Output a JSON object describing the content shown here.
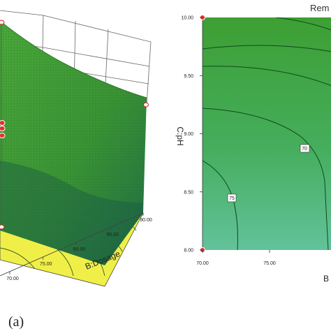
{
  "panel_label": "(a)",
  "colors": {
    "surface": "#3f9a2e",
    "surface_dark": "#1f6e3a",
    "floor": "#f0f04a",
    "contour_fill_top": "#2e9a3a",
    "contour_fill_bottom": "#5cc090",
    "design_point": "#e02020",
    "contour_line": "#104a20"
  },
  "chart_data": [
    {
      "type": "surface",
      "title": "",
      "xlabel": "B:Dosage",
      "x_ticks": [
        "70.00",
        "75.00",
        "80.00",
        "85.00",
        "90.00"
      ],
      "xlim": [
        70,
        90
      ]
    },
    {
      "type": "contour",
      "title": "Rem",
      "xlabel": "B",
      "ylabel": "C:pH",
      "x_ticks": [
        "70.00",
        "75.00"
      ],
      "y_ticks": [
        "10.00",
        "9.50",
        "9.00",
        "8.50",
        "8.00"
      ],
      "xlim": [
        70,
        90
      ],
      "ylim": [
        8,
        10
      ],
      "contour_labels": [
        "75",
        "70"
      ]
    }
  ]
}
